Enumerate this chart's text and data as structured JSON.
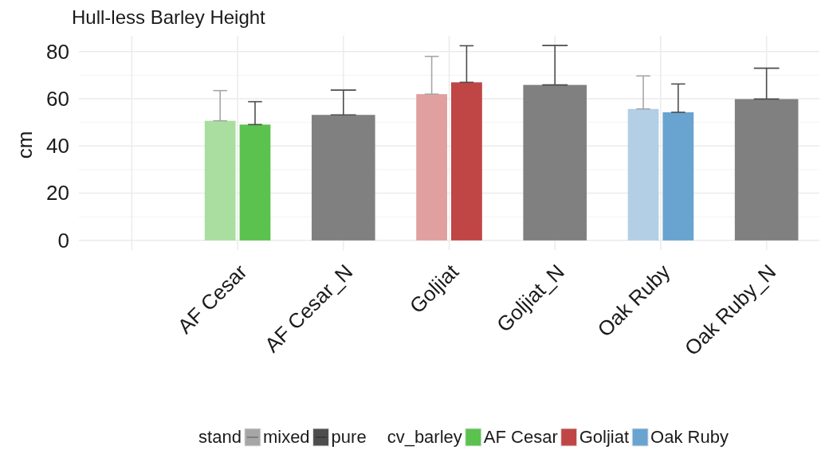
{
  "chart_data": {
    "type": "bar",
    "title": "Hull-less Barley Height",
    "ylabel": "cm",
    "legend_title": [
      "stand",
      "cv_barley"
    ],
    "categories": [
      null,
      "AF Cesar",
      "AF Cesar_N",
      "Goljiat",
      "Goljiat_N",
      "Oak Ruby",
      "Oak Ruby_N"
    ],
    "series": [
      {
        "color": "#a6a6a6",
        "colors": [
          null,
          "#a9dea0",
          null,
          "#e0a0a0",
          null,
          "#b3cfe6",
          null
        ],
        "values": [
          null,
          50.7,
          null,
          62.0,
          null,
          55.7,
          null
        ],
        "errors": [
          null,
          [
            50.7,
            63.5
          ],
          null,
          [
            62.0,
            78.0
          ],
          null,
          [
            55.7,
            69.7
          ],
          null
        ]
      },
      {
        "color": "#4d4d4d",
        "colors": [
          null,
          "#5bc24f",
          "#808080",
          "#c04545",
          "#808080",
          "#69a3d0",
          "#808080"
        ],
        "values": [
          null,
          49.1,
          53.2,
          67.0,
          65.9,
          54.3,
          59.9
        ],
        "errors": [
          null,
          [
            49.1,
            58.8
          ],
          [
            53.2,
            63.7
          ],
          [
            67.0,
            82.5
          ],
          [
            65.9,
            82.6
          ],
          [
            54.3,
            66.3
          ],
          [
            59.9,
            73.0
          ]
        ]
      },
      {
        "name": "mixed",
        "color": "#a6a6a6",
        "values": [
          null,
          null,
          null,
          null,
          null,
          null,
          null
        ]
      },
      {
        "name": "pure",
        "color": "#4d4d4d",
        "values": [
          null,
          null,
          null,
          null,
          null,
          null,
          null
        ]
      },
      {
        "name": "AF Cesar",
        "color": "#5bc24f",
        "values": [
          null,
          null,
          null,
          null,
          null,
          null,
          null
        ]
      },
      {
        "name": "Goljiat",
        "color": "#c04545",
        "values": [
          null,
          null,
          null,
          null,
          null,
          null,
          null
        ]
      },
      {
        "name": "Oak Ruby",
        "color": "#69a3d0",
        "values": [
          null,
          null,
          null,
          null,
          null,
          null,
          null
        ]
      }
    ],
    "ylim": [
      -4.1,
      86.7
    ],
    "yticks": [
      0,
      {
        "value": 10,
        "label": null
      },
      20,
      {
        "value": 30,
        "label": null
      },
      40,
      {
        "value": 50,
        "label": null
      },
      60,
      {
        "value": 70,
        "label": null
      },
      80
    ],
    "grid": true,
    "legend": "bottom"
  }
}
